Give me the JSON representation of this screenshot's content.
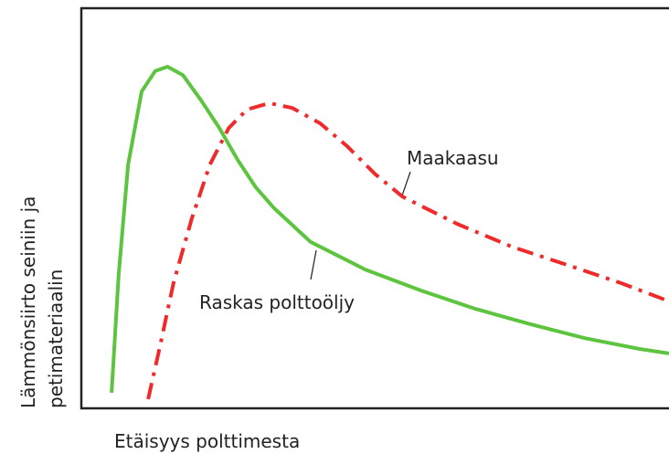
{
  "chart_data": {
    "type": "line",
    "xlabel": "Etäisyys polttimesta",
    "ylabel": [
      "Lämmönsiirto seiniin ja",
      "petimateriaalin"
    ],
    "xlim": [
      0,
      100
    ],
    "ylim": [
      0,
      100
    ],
    "series": [
      {
        "name": "Raskas polttoöljy",
        "color": "#5cc43f",
        "dash": "solid",
        "x": [
          5.3,
          6.5,
          8.1,
          10.4,
          12.7,
          14.8,
          17.4,
          20.5,
          23.6,
          26.7,
          29.8,
          32.9,
          39.1,
          48.4,
          57.8,
          67.1,
          76.4,
          85.7,
          95.0,
          100
        ],
        "values": [
          3.9,
          33.5,
          60.8,
          79.0,
          84.1,
          85.2,
          83.1,
          76.8,
          69.9,
          62.0,
          55.1,
          49.9,
          41.5,
          34.6,
          29.4,
          24.8,
          21.0,
          17.5,
          14.8,
          13.7
        ]
      },
      {
        "name": "Maakaasu",
        "color": "#ee2a2a",
        "dash": "dashdot",
        "x": [
          11.5,
          13.5,
          15.8,
          18.9,
          22.0,
          25.2,
          28.3,
          32.1,
          36.0,
          40.7,
          45.3,
          50.0,
          54.7,
          64.0,
          73.3,
          82.6,
          91.9,
          100
        ],
        "values": [
          2.3,
          15.3,
          31.2,
          47.2,
          60.8,
          69.9,
          74.5,
          76.1,
          74.9,
          71.1,
          65.4,
          58.5,
          52.8,
          46.0,
          40.3,
          35.8,
          31.2,
          26.7
        ]
      }
    ]
  }
}
